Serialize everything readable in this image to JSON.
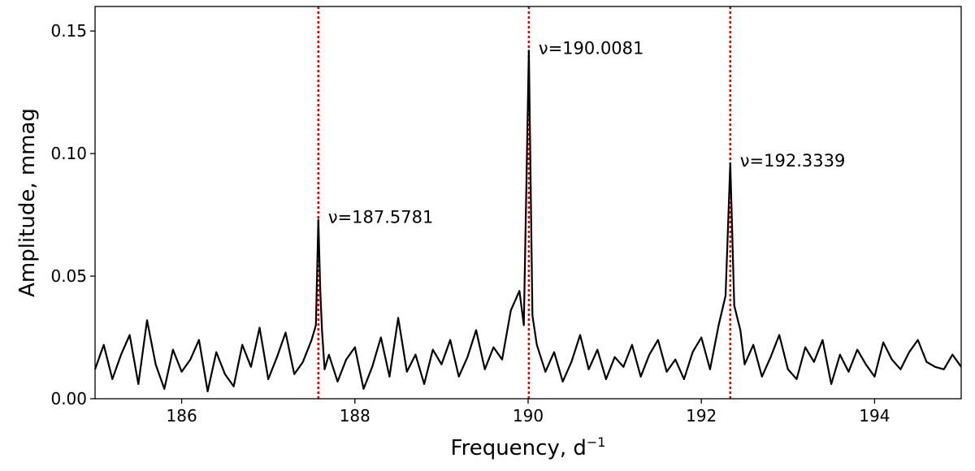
{
  "chart_data": {
    "type": "line",
    "title": "",
    "xlabel": "Frequency, d",
    "xlabel_superscript": "−1",
    "ylabel": "Amplitude, mmag",
    "xlim": [
      185.0,
      195.0
    ],
    "ylim": [
      0.0,
      0.16
    ],
    "x_ticks": [
      186,
      188,
      190,
      192,
      194
    ],
    "y_ticks": [
      0.0,
      0.05,
      0.1,
      0.15
    ],
    "x_tick_labels": [
      "186",
      "188",
      "190",
      "192",
      "194"
    ],
    "y_tick_labels": [
      "0.00",
      "0.05",
      "0.10",
      "0.15"
    ],
    "grid": false,
    "legend": "none",
    "series": [
      {
        "color": "#000000",
        "x": [
          185.0,
          185.1,
          185.2,
          185.3,
          185.4,
          185.5,
          185.6,
          185.7,
          185.8,
          185.9,
          186.0,
          186.1,
          186.2,
          186.3,
          186.4,
          186.5,
          186.6,
          186.7,
          186.8,
          186.9,
          187.0,
          187.1,
          187.2,
          187.3,
          187.4,
          187.5,
          187.55,
          187.578,
          187.6,
          187.62,
          187.65,
          187.7,
          187.8,
          187.9,
          188.0,
          188.1,
          188.2,
          188.3,
          188.4,
          188.5,
          188.6,
          188.7,
          188.8,
          188.9,
          189.0,
          189.1,
          189.2,
          189.3,
          189.4,
          189.5,
          189.6,
          189.7,
          189.8,
          189.9,
          189.95,
          190.008,
          190.05,
          190.1,
          190.2,
          190.3,
          190.4,
          190.5,
          190.6,
          190.7,
          190.8,
          190.9,
          191.0,
          191.1,
          191.2,
          191.3,
          191.4,
          191.5,
          191.6,
          191.7,
          191.8,
          191.9,
          192.0,
          192.1,
          192.2,
          192.28,
          192.334,
          192.38,
          192.45,
          192.5,
          192.6,
          192.7,
          192.8,
          192.9,
          193.0,
          193.1,
          193.2,
          193.3,
          193.4,
          193.5,
          193.6,
          193.7,
          193.8,
          193.9,
          194.0,
          194.1,
          194.2,
          194.3,
          194.4,
          194.5,
          194.6,
          194.7,
          194.8,
          194.9,
          195.0
        ],
        "y": [
          0.012,
          0.022,
          0.008,
          0.018,
          0.026,
          0.006,
          0.032,
          0.014,
          0.004,
          0.02,
          0.011,
          0.016,
          0.024,
          0.003,
          0.019,
          0.01,
          0.005,
          0.022,
          0.013,
          0.029,
          0.008,
          0.017,
          0.027,
          0.01,
          0.015,
          0.024,
          0.03,
          0.073,
          0.044,
          0.028,
          0.012,
          0.018,
          0.007,
          0.016,
          0.021,
          0.004,
          0.013,
          0.025,
          0.009,
          0.033,
          0.011,
          0.018,
          0.006,
          0.02,
          0.014,
          0.024,
          0.009,
          0.017,
          0.028,
          0.012,
          0.021,
          0.016,
          0.036,
          0.044,
          0.03,
          0.142,
          0.034,
          0.022,
          0.011,
          0.019,
          0.007,
          0.015,
          0.026,
          0.012,
          0.02,
          0.008,
          0.017,
          0.013,
          0.022,
          0.009,
          0.018,
          0.024,
          0.011,
          0.016,
          0.008,
          0.019,
          0.025,
          0.012,
          0.03,
          0.042,
          0.096,
          0.038,
          0.028,
          0.014,
          0.022,
          0.009,
          0.017,
          0.026,
          0.012,
          0.008,
          0.021,
          0.015,
          0.024,
          0.006,
          0.018,
          0.011,
          0.02,
          0.014,
          0.009,
          0.023,
          0.016,
          0.012,
          0.019,
          0.024,
          0.015,
          0.013,
          0.012,
          0.018,
          0.013
        ]
      }
    ],
    "reference_lines": [
      {
        "x": 187.5781,
        "color": "#e00000",
        "label": "ν=187.5781"
      },
      {
        "x": 190.0081,
        "color": "#e00000",
        "label": "ν=190.0081"
      },
      {
        "x": 192.3339,
        "color": "#e00000",
        "label": "ν=192.3339"
      }
    ]
  }
}
